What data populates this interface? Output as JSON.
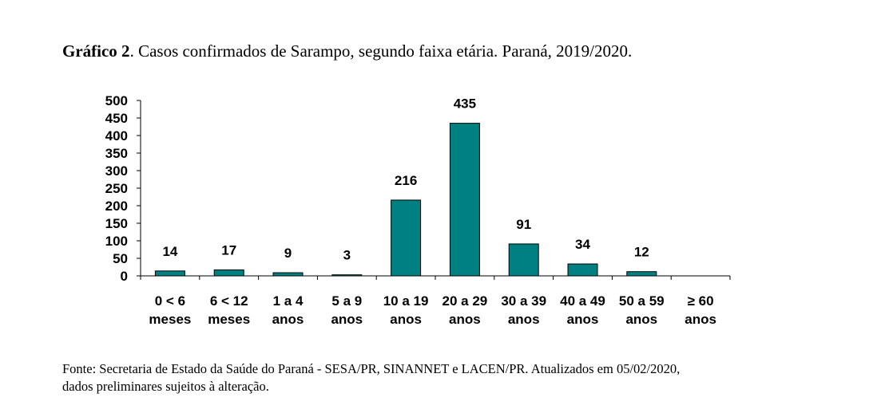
{
  "title": {
    "prefix": "Gráfico 2",
    "text": ". Casos confirmados de Sarampo, segundo faixa etária. Paraná, 2019/2020."
  },
  "chart_data": {
    "type": "bar",
    "categories": [
      [
        "0 < 6",
        "meses"
      ],
      [
        "6 < 12",
        "meses"
      ],
      [
        "1 a 4",
        "anos"
      ],
      [
        "5 a 9",
        "anos"
      ],
      [
        "10 a 19",
        "anos"
      ],
      [
        "20 a 29",
        "anos"
      ],
      [
        "30 a 39",
        "anos"
      ],
      [
        "40 a 49",
        "anos"
      ],
      [
        "50 a 59",
        "anos"
      ],
      [
        "≥ 60",
        "anos"
      ]
    ],
    "values": [
      14,
      17,
      9,
      3,
      216,
      435,
      91,
      34,
      12,
      0
    ],
    "data_labels": [
      "14",
      "17",
      "9",
      "3",
      "216",
      "435",
      "91",
      "34",
      "12",
      ""
    ],
    "ylim": [
      0,
      500
    ],
    "yticks": [
      0,
      50,
      100,
      150,
      200,
      250,
      300,
      350,
      400,
      450,
      500
    ],
    "bar_color": "#008080",
    "grid": false,
    "legend": "none"
  },
  "source": {
    "line1": "Fonte: Secretaria de Estado da Saúde do Paraná - SESA/PR,  SINANNET e LACEN/PR.  Atualizados em 05/02/2020,",
    "line2": "dados preliminares sujeitos à alteração."
  }
}
